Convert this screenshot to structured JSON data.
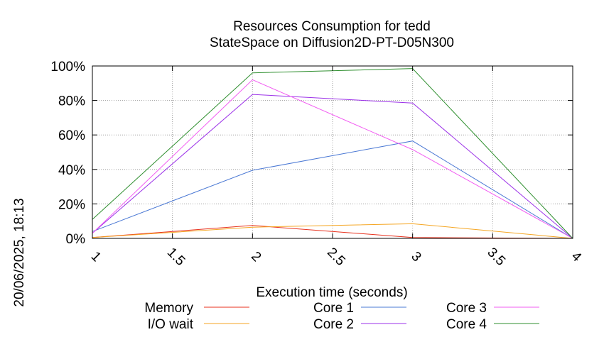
{
  "chart_data": {
    "type": "line",
    "title": "Resources Consumption for tedd",
    "subtitle": "StateSpace on Diffusion2D-PT-D05N300",
    "xlabel": "Execution time (seconds)",
    "ylabel": "",
    "xlim": [
      1,
      4
    ],
    "ylim": [
      0,
      100
    ],
    "xticks": [
      "1",
      "1.5",
      "2",
      "2.5",
      "3",
      "3.5",
      "4"
    ],
    "yticks": [
      "0%",
      "20%",
      "40%",
      "60%",
      "80%",
      "100%"
    ],
    "grid": true,
    "legend_position": "bottom",
    "side_label": "20/06/2025, 18:13",
    "x": [
      1,
      2,
      3,
      4
    ],
    "series": [
      {
        "name": "Memory",
        "color": "#e8321e",
        "values": [
          0.5,
          7.5,
          0.5,
          0
        ]
      },
      {
        "name": "I/O wait",
        "color": "#f5a623",
        "values": [
          0.5,
          6.5,
          8.5,
          0
        ]
      },
      {
        "name": "Core 1",
        "color": "#4a78d4",
        "values": [
          4,
          39.5,
          56.5,
          0
        ]
      },
      {
        "name": "Core 2",
        "color": "#9b30e8",
        "values": [
          3,
          83.5,
          78.5,
          0
        ]
      },
      {
        "name": "Core 3",
        "color": "#f25cf2",
        "values": [
          3,
          92,
          51.5,
          0
        ]
      },
      {
        "name": "Core 4",
        "color": "#2f8f2f",
        "values": [
          11,
          96,
          98.5,
          0
        ]
      }
    ]
  }
}
